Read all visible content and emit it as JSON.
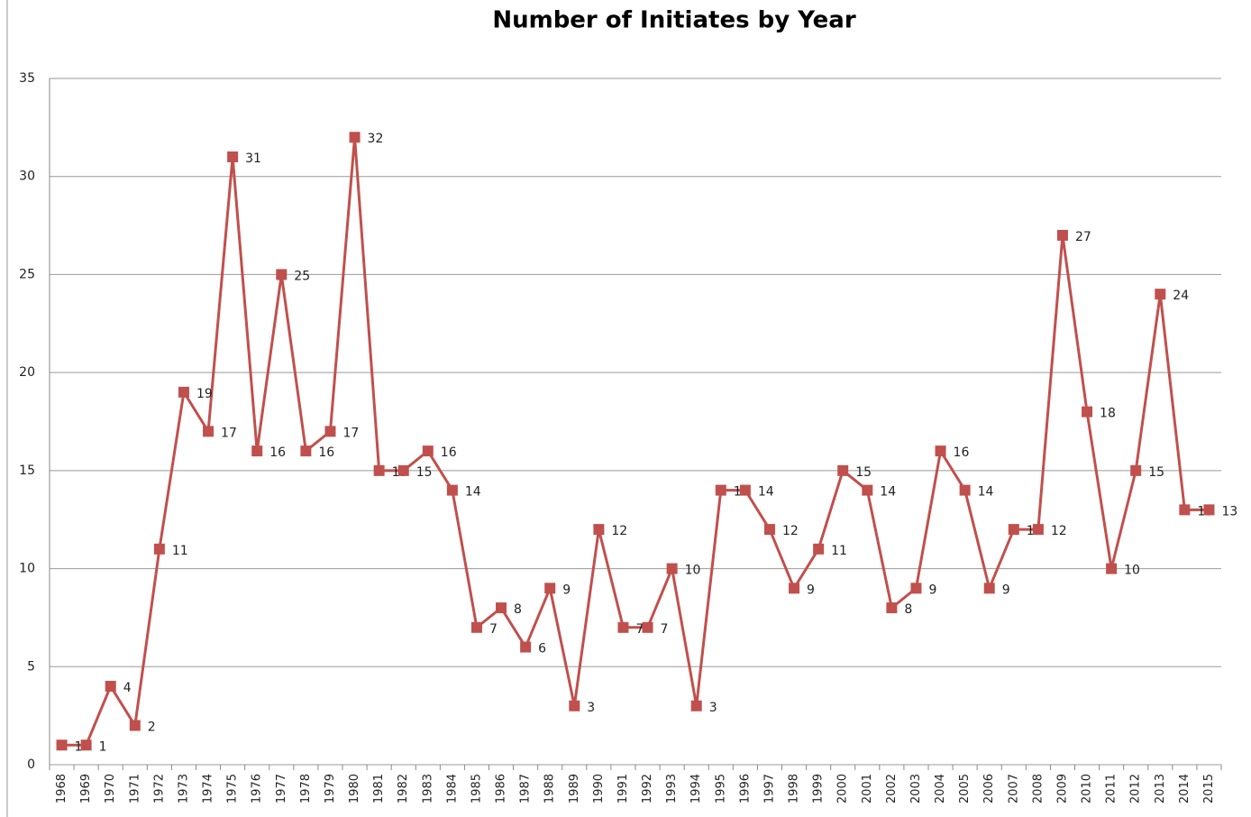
{
  "chart_data": {
    "type": "line",
    "title": "Number of Initiates by Year",
    "categories": [
      "1968",
      "1969",
      "1970",
      "1971",
      "1972",
      "1973",
      "1974",
      "1975",
      "1976",
      "1977",
      "1978",
      "1979",
      "1980",
      "1981",
      "1982",
      "1983",
      "1984",
      "1985",
      "1986",
      "1987",
      "1988",
      "1989",
      "1990",
      "1991",
      "1992",
      "1993",
      "1994",
      "1995",
      "1996",
      "1997",
      "1998",
      "1999",
      "2000",
      "2001",
      "2002",
      "2003",
      "2004",
      "2005",
      "2006",
      "2007",
      "2008",
      "2009",
      "2010",
      "2011",
      "2012",
      "2013",
      "2014",
      "2015"
    ],
    "values": [
      1,
      1,
      4,
      2,
      11,
      19,
      17,
      31,
      16,
      25,
      16,
      17,
      32,
      15,
      15,
      16,
      14,
      7,
      8,
      6,
      9,
      3,
      12,
      7,
      7,
      10,
      3,
      14,
      14,
      12,
      9,
      11,
      15,
      14,
      8,
      9,
      16,
      14,
      9,
      12,
      12,
      27,
      18,
      10,
      15,
      24,
      13,
      13
    ],
    "color": "#c0504d",
    "ylim": [
      0,
      35
    ],
    "yticks": [
      0,
      5,
      10,
      15,
      20,
      25,
      30,
      35
    ],
    "grid": true
  }
}
